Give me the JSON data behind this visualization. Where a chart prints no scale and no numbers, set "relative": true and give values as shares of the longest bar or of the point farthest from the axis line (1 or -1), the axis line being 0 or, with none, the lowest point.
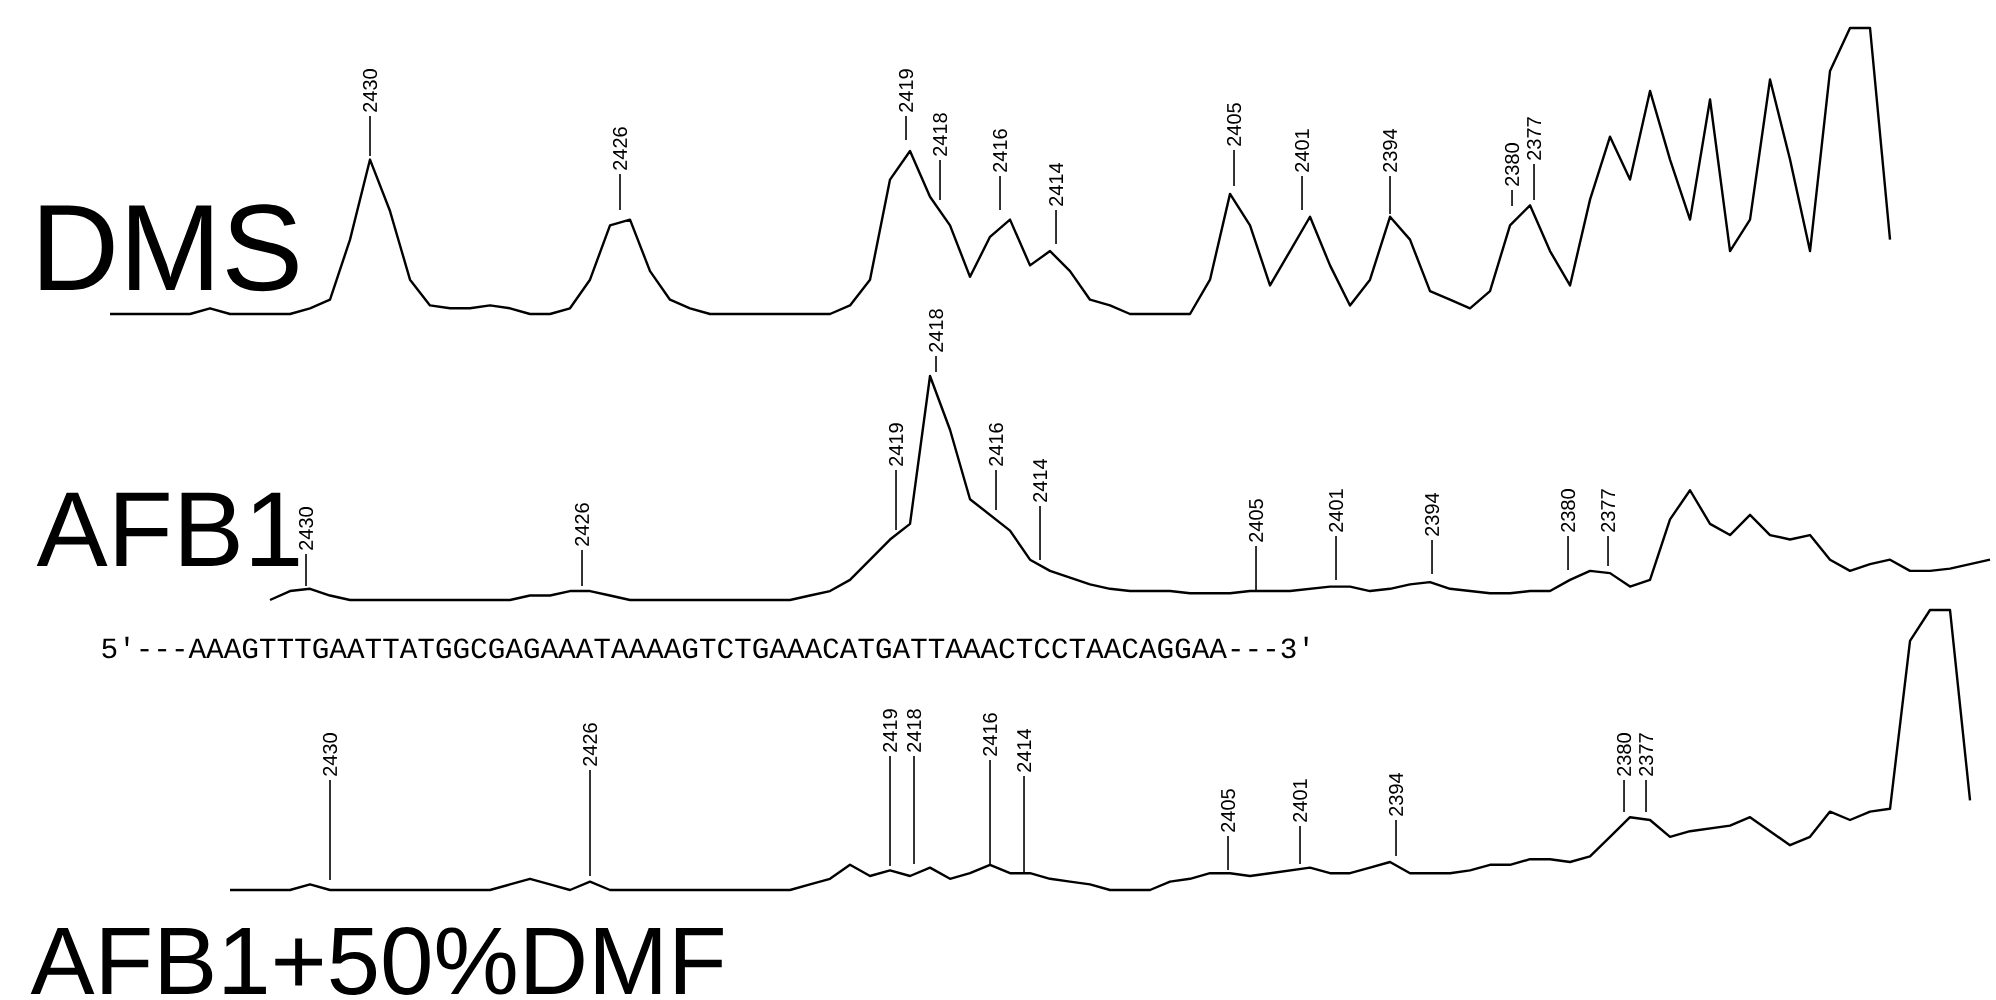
{
  "chart_data": [
    {
      "type": "line",
      "title": "DMS",
      "relative": true,
      "color": "#000000",
      "categories": [
        null,
        null,
        null,
        null,
        null,
        null,
        null,
        null,
        null,
        null,
        null,
        null,
        null,
        null,
        null,
        null,
        null,
        null,
        null,
        null,
        null,
        null,
        null,
        null,
        null,
        null,
        null,
        null,
        null,
        null,
        null,
        null,
        null,
        null,
        null,
        null,
        null,
        null,
        null,
        null,
        null,
        null,
        null,
        null,
        null,
        null,
        null,
        null,
        null,
        null,
        null,
        null,
        null,
        null,
        null,
        null,
        null,
        null,
        null,
        null,
        null,
        null,
        null,
        null,
        null,
        null,
        null,
        null,
        null,
        null,
        null,
        null,
        null,
        null,
        null,
        null,
        null,
        null,
        null,
        null,
        null,
        null,
        null,
        null,
        null,
        null,
        null,
        null,
        null,
        null
      ],
      "values": [
        0,
        0,
        0,
        0,
        0,
        0.02,
        0,
        0,
        0,
        0,
        0.02,
        0.05,
        0.26,
        0.54,
        0.36,
        0.12,
        0.03,
        0.02,
        0.02,
        0.03,
        0.02,
        0,
        0,
        0.02,
        0.12,
        0.31,
        0.33,
        0.15,
        0.05,
        0.02,
        0,
        0,
        0,
        0,
        0,
        0,
        0,
        0.03,
        0.12,
        0.47,
        0.57,
        0.41,
        0.31,
        0.13,
        0.27,
        0.33,
        0.17,
        0.22,
        0.15,
        0.05,
        0.03,
        0,
        0,
        0,
        0,
        0.12,
        0.42,
        0.31,
        0.1,
        0.22,
        0.34,
        0.17,
        0.03,
        0.12,
        0.34,
        0.26,
        0.08,
        0.05,
        0.02,
        0.08,
        0.31,
        0.38,
        0.22,
        0.1,
        0.4,
        0.62,
        0.47,
        0.78,
        0.54,
        0.33,
        0.75,
        0.22,
        0.33,
        0.82,
        0.54,
        0.22,
        0.85,
        1.0,
        1.0,
        0.26
      ],
      "annotations": [
        "2430",
        "2426",
        "2419",
        "2418",
        "2416",
        "2414",
        "2405",
        "2401",
        "2394",
        "2380",
        "2377"
      ]
    },
    {
      "type": "line",
      "title": "AFB1",
      "relative": true,
      "color": "#000000",
      "categories": [
        null,
        null,
        null,
        null,
        null,
        null,
        null,
        null,
        null,
        null,
        null,
        null,
        null,
        null,
        null,
        null,
        null,
        null,
        null,
        null,
        null,
        null,
        null,
        null,
        null,
        null,
        null,
        null,
        null,
        null,
        null,
        null,
        null,
        null,
        null,
        null,
        null,
        null,
        null,
        null,
        null,
        null,
        null,
        null,
        null,
        null,
        null,
        null,
        null,
        null,
        null,
        null,
        null,
        null,
        null,
        null,
        null,
        null,
        null,
        null,
        null,
        null,
        null,
        null,
        null,
        null,
        null,
        null,
        null,
        null,
        null,
        null,
        null,
        null,
        null,
        null,
        null,
        null,
        null,
        null,
        null,
        null,
        null,
        null,
        null,
        null,
        null
      ],
      "values": [
        0,
        0.04,
        0.05,
        0.02,
        0,
        0,
        0,
        0,
        0,
        0,
        0,
        0,
        0,
        0.02,
        0.02,
        0.04,
        0.04,
        0.02,
        0,
        0,
        0,
        0,
        0,
        0,
        0,
        0,
        0,
        0.02,
        0.04,
        0.09,
        0.18,
        0.27,
        0.34,
        1.0,
        0.76,
        0.45,
        0.38,
        0.31,
        0.18,
        0.13,
        0.1,
        0.07,
        0.05,
        0.04,
        0.04,
        0.04,
        0.03,
        0.03,
        0.03,
        0.04,
        0.04,
        0.04,
        0.05,
        0.06,
        0.06,
        0.04,
        0.05,
        0.07,
        0.08,
        0.05,
        0.04,
        0.03,
        0.03,
        0.04,
        0.04,
        0.09,
        0.13,
        0.12,
        0.06,
        0.09,
        0.36,
        0.49,
        0.34,
        0.29,
        0.38,
        0.29,
        0.27,
        0.29,
        0.18,
        0.13,
        0.16,
        0.18,
        0.13,
        0.13,
        0.14,
        0.16,
        0.18
      ],
      "annotations": [
        "2430",
        "2426",
        "2419",
        "2418",
        "2416",
        "2414",
        "2405",
        "2401",
        "2394",
        "2380",
        "2377",
        "5'---AAAGTTTGAATTATGGCGAGAAATAAAAGTCTGAAACATGATTAAACTCCTAACAGGAA---3'"
      ]
    },
    {
      "type": "line",
      "title": "AFB1+50%DMF",
      "relative": true,
      "color": "#000000",
      "categories": [
        null,
        null,
        null,
        null,
        null,
        null,
        null,
        null,
        null,
        null,
        null,
        null,
        null,
        null,
        null,
        null,
        null,
        null,
        null,
        null,
        null,
        null,
        null,
        null,
        null,
        null,
        null,
        null,
        null,
        null,
        null,
        null,
        null,
        null,
        null,
        null,
        null,
        null,
        null,
        null,
        null,
        null,
        null,
        null,
        null,
        null,
        null,
        null,
        null,
        null,
        null,
        null,
        null,
        null,
        null,
        null,
        null,
        null,
        null,
        null,
        null,
        null,
        null,
        null,
        null,
        null,
        null,
        null,
        null,
        null,
        null,
        null,
        null,
        null,
        null,
        null,
        null,
        null,
        null,
        null,
        null,
        null,
        null,
        null,
        null,
        null,
        null,
        null
      ],
      "values": [
        0,
        0,
        0,
        0,
        0.02,
        0,
        0,
        0,
        0,
        0,
        0,
        0,
        0,
        0,
        0.02,
        0.04,
        0.02,
        0,
        0.03,
        0,
        0,
        0,
        0,
        0,
        0,
        0,
        0,
        0,
        0,
        0.02,
        0.04,
        0.09,
        0.05,
        0.07,
        0.05,
        0.08,
        0.04,
        0.06,
        0.09,
        0.06,
        0.06,
        0.04,
        0.03,
        0.02,
        0,
        0,
        0,
        0.03,
        0.04,
        0.06,
        0.06,
        0.05,
        0.06,
        0.07,
        0.08,
        0.06,
        0.06,
        0.08,
        0.1,
        0.06,
        0.06,
        0.06,
        0.07,
        0.09,
        0.09,
        0.11,
        0.11,
        0.1,
        0.12,
        0.19,
        0.26,
        0.25,
        0.19,
        0.21,
        0.22,
        0.23,
        0.26,
        0.21,
        0.16,
        0.19,
        0.28,
        0.25,
        0.28,
        0.29,
        0.89,
        1.0,
        1.0,
        0.32
      ],
      "annotations": [
        "2430",
        "2426",
        "2419",
        "2418",
        "2416",
        "2414",
        "2405",
        "2401",
        "2394",
        "2380",
        "2377"
      ]
    }
  ]
}
